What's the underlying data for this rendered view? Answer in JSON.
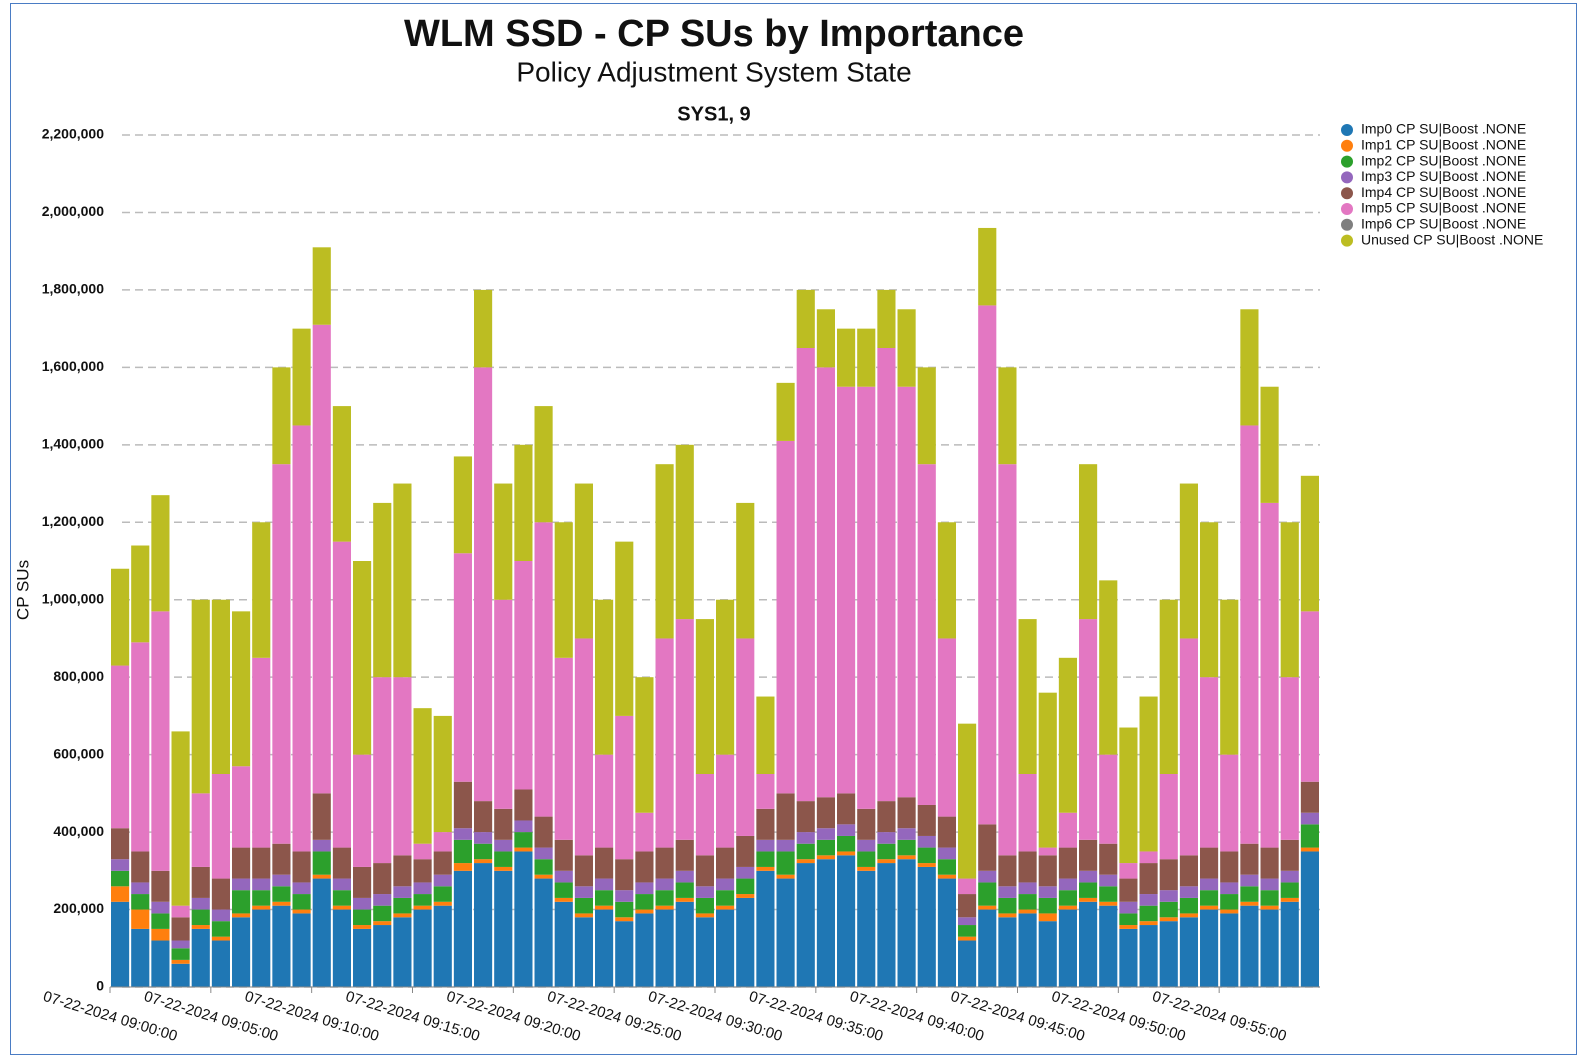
{
  "chart_data": {
    "type": "stacked-bar",
    "title": "WLM SSD - CP SUs by Importance",
    "subtitle": "Policy Adjustment System State",
    "panel_title": "SYS1, 9",
    "y_label": "CP SUs",
    "x": [
      "07-22-2024 09:00:00",
      "07-22-2024 09:01:00",
      "07-22-2024 09:02:00",
      "07-22-2024 09:03:00",
      "07-22-2024 09:04:00",
      "07-22-2024 09:05:00",
      "07-22-2024 09:06:00",
      "07-22-2024 09:07:00",
      "07-22-2024 09:08:00",
      "07-22-2024 09:09:00",
      "07-22-2024 09:10:00",
      "07-22-2024 09:11:00",
      "07-22-2024 09:12:00",
      "07-22-2024 09:13:00",
      "07-22-2024 09:14:00",
      "07-22-2024 09:15:00",
      "07-22-2024 09:16:00",
      "07-22-2024 09:17:00",
      "07-22-2024 09:18:00",
      "07-22-2024 09:19:00",
      "07-22-2024 09:20:00",
      "07-22-2024 09:21:00",
      "07-22-2024 09:22:00",
      "07-22-2024 09:23:00",
      "07-22-2024 09:24:00",
      "07-22-2024 09:25:00",
      "07-22-2024 09:26:00",
      "07-22-2024 09:27:00",
      "07-22-2024 09:28:00",
      "07-22-2024 09:29:00",
      "07-22-2024 09:30:00",
      "07-22-2024 09:31:00",
      "07-22-2024 09:32:00",
      "07-22-2024 09:33:00",
      "07-22-2024 09:34:00",
      "07-22-2024 09:35:00",
      "07-22-2024 09:36:00",
      "07-22-2024 09:37:00",
      "07-22-2024 09:38:00",
      "07-22-2024 09:39:00",
      "07-22-2024 09:40:00",
      "07-22-2024 09:41:00",
      "07-22-2024 09:42:00",
      "07-22-2024 09:43:00",
      "07-22-2024 09:44:00",
      "07-22-2024 09:45:00",
      "07-22-2024 09:46:00",
      "07-22-2024 09:47:00",
      "07-22-2024 09:48:00",
      "07-22-2024 09:49:00",
      "07-22-2024 09:50:00",
      "07-22-2024 09:51:00",
      "07-22-2024 09:52:00",
      "07-22-2024 09:53:00",
      "07-22-2024 09:54:00",
      "07-22-2024 09:55:00",
      "07-22-2024 09:56:00",
      "07-22-2024 09:57:00",
      "07-22-2024 09:58:00",
      "07-22-2024 09:59:00"
    ],
    "xlim": [
      "07-22-2024 09:00:00",
      "07-22-2024 10:00:00"
    ],
    "xticks": [
      "07-22-2024 09:00:00",
      "07-22-2024 09:05:00",
      "07-22-2024 09:10:00",
      "07-22-2024 09:15:00",
      "07-22-2024 09:20:00",
      "07-22-2024 09:25:00",
      "07-22-2024 09:30:00",
      "07-22-2024 09:35:00",
      "07-22-2024 09:40:00",
      "07-22-2024 09:45:00",
      "07-22-2024 09:50:00",
      "07-22-2024 09:55:00"
    ],
    "ylim": [
      0,
      2200000
    ],
    "yticks": [
      0,
      {
        "value": 200000,
        "label": "200,000"
      },
      {
        "value": 400000,
        "label": "400,000"
      },
      {
        "value": 600000,
        "label": "600,000"
      },
      {
        "value": 800000,
        "label": "800,000"
      },
      {
        "value": 1000000,
        "label": "1,000,000"
      },
      {
        "value": 1200000,
        "label": "1,200,000"
      },
      {
        "value": 1400000,
        "label": "1,400,000"
      },
      {
        "value": 1600000,
        "label": "1,600,000"
      },
      {
        "value": 1800000,
        "label": "1,800,000"
      },
      {
        "value": 2000000,
        "label": "2,000,000"
      },
      {
        "value": 2200000,
        "label": "2,200,000"
      }
    ],
    "grid": true,
    "legend": "right",
    "series": [
      {
        "name": "Imp0 CP SU|Boost .NONE",
        "color": "#1f77b4",
        "values": [
          220000,
          150000,
          120000,
          60000,
          150000,
          120000,
          180000,
          200000,
          210000,
          190000,
          280000,
          200000,
          150000,
          160000,
          180000,
          200000,
          210000,
          300000,
          320000,
          300000,
          350000,
          280000,
          220000,
          180000,
          200000,
          170000,
          190000,
          200000,
          220000,
          180000,
          200000,
          230000,
          300000,
          280000,
          320000,
          330000,
          340000,
          300000,
          320000,
          330000,
          310000,
          280000,
          120000,
          200000,
          180000,
          190000,
          170000,
          200000,
          220000,
          210000,
          150000,
          160000,
          170000,
          180000,
          200000,
          190000,
          210000,
          200000,
          220000,
          350000
        ]
      },
      {
        "name": "Imp1 CP SU|Boost .NONE",
        "color": "#ff7f0e",
        "values": [
          40000,
          50000,
          30000,
          10000,
          10000,
          10000,
          10000,
          10000,
          10000,
          10000,
          10000,
          10000,
          10000,
          10000,
          10000,
          10000,
          10000,
          20000,
          10000,
          10000,
          10000,
          10000,
          10000,
          10000,
          10000,
          10000,
          10000,
          10000,
          10000,
          10000,
          10000,
          10000,
          10000,
          10000,
          10000,
          10000,
          10000,
          10000,
          10000,
          10000,
          10000,
          10000,
          10000,
          10000,
          10000,
          10000,
          20000,
          10000,
          10000,
          10000,
          10000,
          10000,
          10000,
          10000,
          10000,
          10000,
          10000,
          10000,
          10000,
          10000
        ]
      },
      {
        "name": "Imp2 CP SU|Boost .NONE",
        "color": "#2ca02c",
        "values": [
          40000,
          40000,
          40000,
          30000,
          40000,
          40000,
          60000,
          40000,
          40000,
          40000,
          60000,
          40000,
          40000,
          40000,
          40000,
          30000,
          40000,
          60000,
          40000,
          40000,
          40000,
          40000,
          40000,
          40000,
          40000,
          40000,
          40000,
          40000,
          40000,
          40000,
          40000,
          40000,
          40000,
          60000,
          40000,
          40000,
          40000,
          40000,
          40000,
          40000,
          40000,
          40000,
          30000,
          60000,
          40000,
          40000,
          40000,
          40000,
          40000,
          40000,
          30000,
          40000,
          40000,
          40000,
          40000,
          40000,
          40000,
          40000,
          40000,
          60000
        ]
      },
      {
        "name": "Imp3 CP SU|Boost .NONE",
        "color": "#9467bd",
        "values": [
          30000,
          30000,
          30000,
          20000,
          30000,
          30000,
          30000,
          30000,
          30000,
          30000,
          30000,
          30000,
          30000,
          30000,
          30000,
          30000,
          30000,
          30000,
          30000,
          30000,
          30000,
          30000,
          30000,
          30000,
          30000,
          30000,
          30000,
          30000,
          30000,
          30000,
          30000,
          30000,
          30000,
          30000,
          30000,
          30000,
          30000,
          30000,
          30000,
          30000,
          30000,
          30000,
          20000,
          30000,
          30000,
          30000,
          30000,
          30000,
          30000,
          30000,
          30000,
          30000,
          30000,
          30000,
          30000,
          30000,
          30000,
          30000,
          30000,
          30000
        ]
      },
      {
        "name": "Imp4 CP SU|Boost .NONE",
        "color": "#8c564b",
        "values": [
          80000,
          80000,
          80000,
          60000,
          80000,
          80000,
          80000,
          80000,
          80000,
          80000,
          120000,
          80000,
          80000,
          80000,
          80000,
          60000,
          60000,
          120000,
          80000,
          80000,
          80000,
          80000,
          80000,
          80000,
          80000,
          80000,
          80000,
          80000,
          80000,
          80000,
          80000,
          80000,
          80000,
          120000,
          80000,
          80000,
          80000,
          80000,
          80000,
          80000,
          80000,
          80000,
          60000,
          120000,
          80000,
          80000,
          80000,
          80000,
          80000,
          80000,
          60000,
          80000,
          80000,
          80000,
          80000,
          80000,
          80000,
          80000,
          80000,
          80000
        ]
      },
      {
        "name": "Imp5 CP SU|Boost .NONE",
        "color": "#e377c2",
        "values": [
          420000,
          540000,
          670000,
          30000,
          190000,
          270000,
          210000,
          490000,
          980000,
          1100000,
          1210000,
          790000,
          290000,
          480000,
          460000,
          40000,
          50000,
          590000,
          1120000,
          540000,
          590000,
          760000,
          470000,
          560000,
          240000,
          370000,
          100000,
          540000,
          570000,
          210000,
          240000,
          510000,
          90000,
          910000,
          1170000,
          1110000,
          1050000,
          1090000,
          1170000,
          1060000,
          880000,
          460000,
          40000,
          1340000,
          1010000,
          200000,
          20000,
          90000,
          570000,
          230000,
          40000,
          30000,
          220000,
          560000,
          440000,
          250000,
          1080000,
          890000,
          420000,
          440000
        ]
      },
      {
        "name": "Imp6 CP SU|Boost .NONE",
        "color": "#7f7f7f",
        "values": [
          0,
          0,
          0,
          0,
          0,
          0,
          0,
          0,
          0,
          0,
          0,
          0,
          0,
          0,
          0,
          0,
          0,
          0,
          0,
          0,
          0,
          0,
          0,
          0,
          0,
          0,
          0,
          0,
          0,
          0,
          0,
          0,
          0,
          0,
          0,
          0,
          0,
          0,
          0,
          0,
          0,
          0,
          0,
          0,
          0,
          0,
          0,
          0,
          0,
          0,
          0,
          0,
          0,
          0,
          0,
          0,
          0,
          0,
          0,
          0
        ]
      },
      {
        "name": "Unused CP SU|Boost .NONE",
        "color": "#bcbd22",
        "values": [
          250000,
          250000,
          300000,
          450000,
          500000,
          450000,
          400000,
          350000,
          250000,
          250000,
          200000,
          350000,
          500000,
          450000,
          500000,
          350000,
          300000,
          250000,
          200000,
          300000,
          300000,
          300000,
          350000,
          400000,
          400000,
          450000,
          350000,
          450000,
          450000,
          400000,
          400000,
          350000,
          200000,
          150000,
          150000,
          150000,
          150000,
          150000,
          150000,
          200000,
          250000,
          300000,
          400000,
          200000,
          250000,
          400000,
          400000,
          400000,
          400000,
          450000,
          350000,
          400000,
          450000,
          400000,
          400000,
          400000,
          300000,
          300000,
          400000,
          350000
        ]
      }
    ]
  }
}
